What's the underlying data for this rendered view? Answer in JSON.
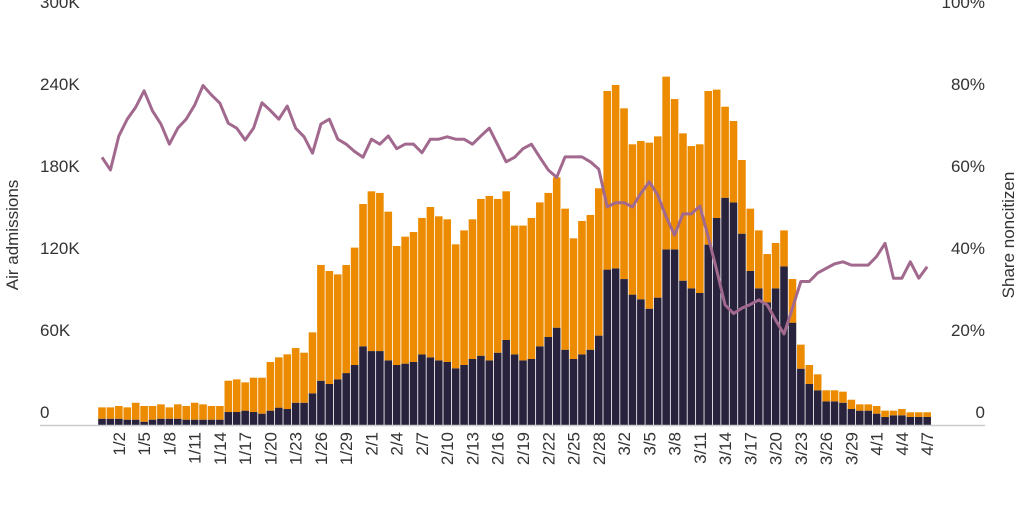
{
  "chart_data": {
    "type": "bar",
    "stacked": true,
    "ylabel": "Air admissions",
    "y2label": "Share noncitizen",
    "ylim": [
      0,
      300
    ],
    "y2lim": [
      0,
      100
    ],
    "y_unit": "K",
    "y_ticks": [
      "0",
      "60K",
      "120K",
      "180K",
      "240K",
      "300K"
    ],
    "y_tick_values": [
      0,
      60,
      120,
      180,
      240,
      300
    ],
    "y2_ticks": [
      "0",
      "20%",
      "40%",
      "60%",
      "80%",
      "100%"
    ],
    "y2_tick_values": [
      0,
      20,
      40,
      60,
      80,
      100
    ],
    "grid": false,
    "x_tick_labels": [
      "1/2",
      "1/5",
      "1/8",
      "1/11",
      "1/14",
      "1/17",
      "1/20",
      "1/23",
      "1/26",
      "1/29",
      "2/1",
      "2/4",
      "2/7",
      "2/10",
      "2/13",
      "2/16",
      "2/19",
      "2/22",
      "2/25",
      "2/28",
      "3/2",
      "3/5",
      "3/8",
      "3/11",
      "3/14",
      "3/17",
      "3/20",
      "3/23",
      "3/26",
      "3/29",
      "4/1",
      "4/4",
      "4/7"
    ],
    "categories": [
      "12/31",
      "1/1",
      "1/2",
      "1/3",
      "1/4",
      "1/5",
      "1/6",
      "1/7",
      "1/8",
      "1/9",
      "1/10",
      "1/11",
      "1/12",
      "1/13",
      "1/14",
      "1/15",
      "1/16",
      "1/17",
      "1/18",
      "1/19",
      "1/20",
      "1/21",
      "1/22",
      "1/23",
      "1/24",
      "1/25",
      "1/26",
      "1/27",
      "1/28",
      "1/29",
      "1/30",
      "1/31",
      "2/1",
      "2/2",
      "2/3",
      "2/4",
      "2/5",
      "2/6",
      "2/7",
      "2/8",
      "2/9",
      "2/10",
      "2/11",
      "2/12",
      "2/13",
      "2/14",
      "2/15",
      "2/16",
      "2/17",
      "2/18",
      "2/19",
      "2/20",
      "2/21",
      "2/22",
      "2/23",
      "2/24",
      "2/25",
      "2/26",
      "2/27",
      "2/28",
      "2/29",
      "3/1",
      "3/2",
      "3/3",
      "3/4",
      "3/5",
      "3/6",
      "3/7",
      "3/8",
      "3/9",
      "3/10",
      "3/11",
      "3/12",
      "3/13",
      "3/14",
      "3/15",
      "3/16",
      "3/17",
      "3/18",
      "3/19",
      "3/20",
      "3/21",
      "3/22",
      "3/23",
      "3/24",
      "3/25",
      "3/26",
      "3/27",
      "3/28",
      "3/29",
      "3/30",
      "3/31",
      "4/1",
      "4/2",
      "4/3",
      "4/4",
      "4/5",
      "4/6",
      "4/7"
    ],
    "series": [
      {
        "color": "#28223d",
        "values": [
          4.6,
          4.6,
          4.6,
          3.9,
          3.9,
          2.4,
          3.9,
          4.6,
          4.6,
          4.6,
          3.9,
          3.9,
          3.9,
          3.9,
          3.9,
          9.5,
          9.5,
          10.5,
          9.5,
          8.3,
          10.5,
          12.7,
          11.7,
          16.3,
          16.3,
          23.2,
          32.4,
          30.0,
          33.4,
          38.0,
          43.9,
          57.6,
          54.1,
          54.1,
          47.3,
          43.9,
          44.9,
          46.1,
          51.7,
          49.5,
          47.3,
          46.1,
          41.5,
          43.9,
          48.3,
          50.7,
          47.3,
          52.9,
          62.2,
          51.7,
          47.3,
          48.3,
          57.6,
          64.4,
          71.2,
          55.1,
          48.3,
          51.7,
          55.1,
          65.4,
          113.7,
          114.6,
          106.8,
          95.4,
          92.0,
          85.1,
          93.2,
          128.5,
          128.5,
          105.6,
          100.0,
          96.6,
          132.0,
          151.5,
          166.3,
          162.9,
          140.0,
          112.7,
          100.0,
          89.8,
          100.0,
          116.0,
          74.9,
          41.2,
          30.0,
          25.4,
          17.3,
          17.3,
          16.3,
          11.7,
          10.5,
          10.5,
          8.3,
          5.9,
          7.1,
          7.1,
          5.9,
          5.9,
          5.9
        ]
      },
      {
        "color": "#ec8b00",
        "values": [
          8.3,
          8.3,
          9.3,
          9.0,
          12.4,
          11.5,
          10.0,
          10.5,
          8.3,
          10.5,
          10.0,
          12.4,
          11.2,
          10.0,
          10.0,
          22.9,
          23.9,
          20.7,
          25.1,
          26.3,
          35.6,
          36.8,
          40.0,
          40.0,
          36.6,
          44.6,
          84.7,
          82.7,
          76.8,
          79.1,
          85.9,
          104.1,
          116.9,
          115.7,
          108.8,
          87.1,
          92.9,
          95.1,
          99.8,
          110.0,
          105.4,
          104.4,
          90.7,
          98.5,
          102.2,
          114.7,
          120.3,
          112.5,
          108.8,
          94.2,
          98.6,
          103.2,
          105.3,
          105.4,
          110.0,
          103.2,
          88.3,
          97.6,
          98.6,
          107.8,
          130.7,
          134.2,
          124.9,
          110.0,
          115.8,
          121.5,
          118.0,
          126.4,
          110.0,
          107.8,
          104.1,
          108.8,
          112.4,
          93.9,
          66.6,
          59.5,
          53.9,
          45.6,
          42.4,
          35.3,
          33.2,
          26.4,
          31.9,
          17.6,
          13.9,
          11.7,
          8.1,
          8.1,
          8.1,
          6.8,
          4.6,
          4.6,
          5.6,
          4.6,
          3.4,
          4.6,
          3.4,
          3.4,
          3.4
        ]
      }
    ],
    "line": {
      "type": "line",
      "axis": "right",
      "color": "#a2698f",
      "values": [
        65.3,
        62.2,
        70.5,
        74.6,
        77.5,
        81.5,
        76.6,
        73.4,
        68.5,
        72.4,
        74.6,
        78.0,
        82.8,
        80.5,
        78.5,
        73.6,
        72.4,
        69.5,
        72.4,
        78.6,
        76.7,
        74.6,
        77.8,
        72.4,
        70.3,
        66.3,
        73.4,
        74.6,
        69.7,
        68.5,
        66.7,
        65.3,
        69.7,
        68.5,
        70.5,
        67.4,
        68.5,
        68.5,
        66.4,
        69.7,
        69.7,
        70.3,
        69.7,
        69.7,
        68.5,
        70.5,
        72.4,
        68.3,
        64.2,
        65.3,
        67.4,
        68.5,
        65.3,
        62.2,
        60.4,
        65.4,
        65.4,
        65.4,
        64.2,
        62.4,
        53.2,
        54.2,
        54.2,
        53.2,
        56.5,
        59.3,
        56.1,
        50.8,
        46.3,
        51.5,
        51.5,
        53.4,
        45.9,
        37.8,
        29.3,
        27.2,
        28.5,
        29.4,
        30.5,
        29.3,
        25.6,
        22.2,
        28.5,
        35.0,
        35.0,
        37.1,
        38.2,
        39.3,
        39.8,
        39.0,
        39.0,
        39.0,
        41.1,
        44.3,
        35.8,
        35.8,
        39.8,
        35.8,
        38.6
      ]
    }
  }
}
